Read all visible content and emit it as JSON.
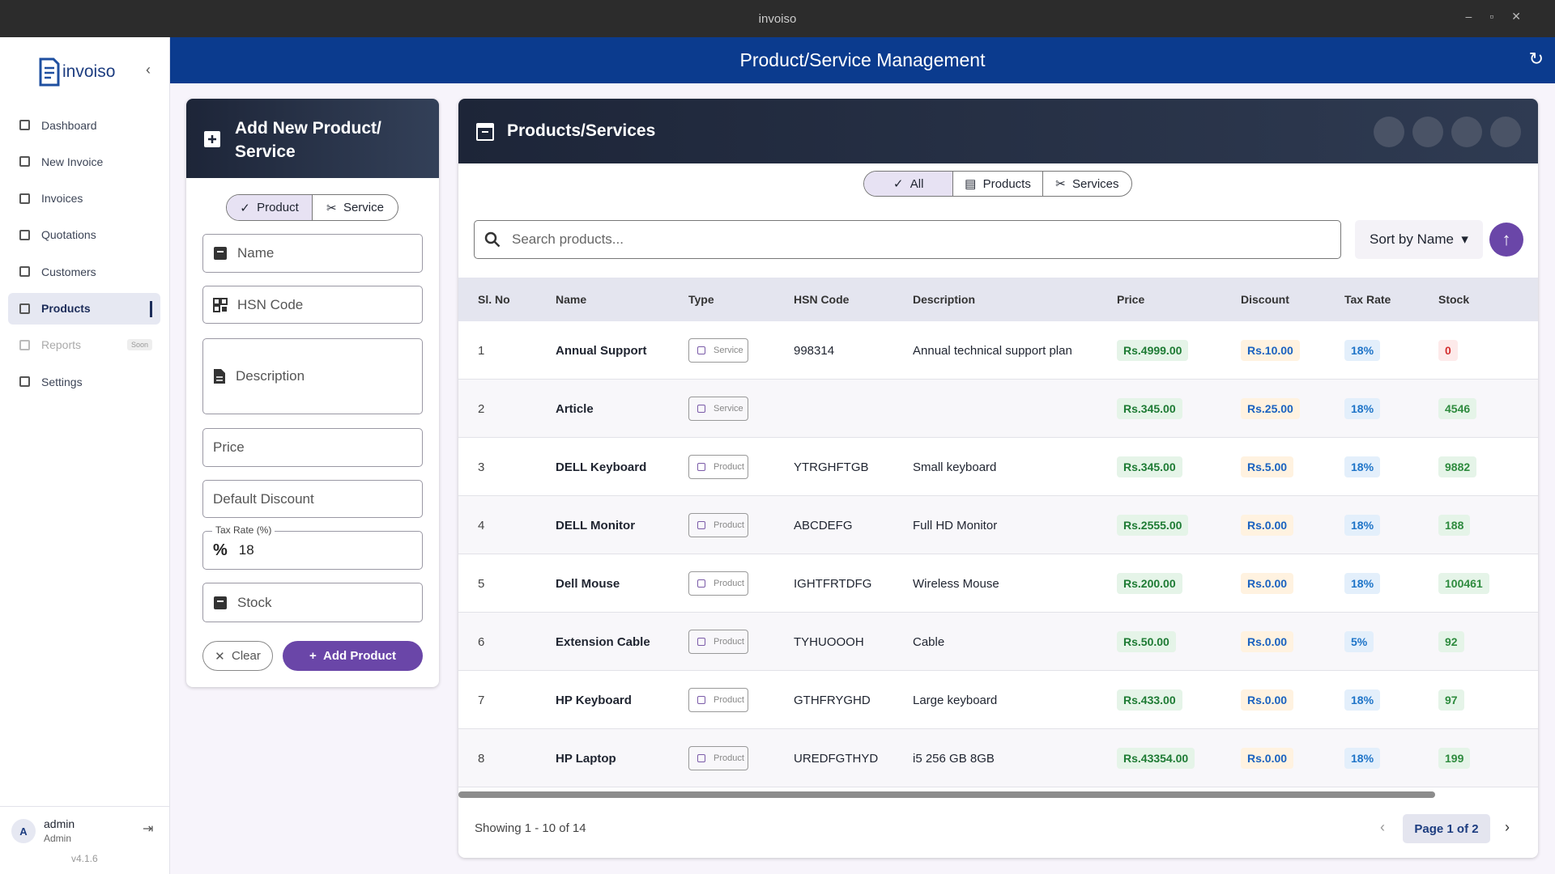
{
  "window": {
    "title": "invoiso"
  },
  "sidebar": {
    "logo": "invoiso",
    "nav": [
      {
        "label": "Dashboard"
      },
      {
        "label": "New Invoice"
      },
      {
        "label": "Invoices"
      },
      {
        "label": "Quotations"
      },
      {
        "label": "Customers"
      },
      {
        "label": "Products"
      },
      {
        "label": "Reports",
        "badge": "Soon"
      },
      {
        "label": "Settings"
      }
    ],
    "user": {
      "initial": "A",
      "name": "admin",
      "role": "Admin"
    },
    "version": "v4.1.6"
  },
  "header": {
    "title": "Product/Service Management"
  },
  "form": {
    "title": "Add New Product/ Service",
    "toggle": [
      "Product",
      "Service"
    ],
    "fields": {
      "name": "Name",
      "hsn": "HSN Code",
      "description": "Description",
      "price": "Price",
      "discount": "Default Discount",
      "tax_label": "Tax Rate (%)",
      "tax_value": "18",
      "stock": "Stock"
    },
    "buttons": [
      "Clear",
      "Add Product"
    ]
  },
  "list": {
    "title": "Products/Services",
    "filters": [
      "All",
      "Products",
      "Services"
    ],
    "search_placeholder": "Search products...",
    "sort": "Sort by Name",
    "table": {
      "columns": [
        "Sl. No",
        "Name",
        "Type",
        "HSN Code",
        "Description",
        "Price",
        "Discount",
        "Tax Rate",
        "Stock"
      ],
      "rows": [
        [
          "1",
          "Annual Support",
          "Service",
          "998314",
          "Annual technical support plan",
          "Rs.4999.00",
          "Rs.10.00",
          "18%",
          "0"
        ],
        [
          "2",
          "Article",
          "Service",
          null,
          null,
          "Rs.345.00",
          "Rs.25.00",
          "18%",
          "4546"
        ],
        [
          "3",
          "DELL Keyboard",
          "Product",
          "YTRGHFTGB",
          "Small keyboard",
          "Rs.345.00",
          "Rs.5.00",
          "18%",
          "9882"
        ],
        [
          "4",
          "DELL Monitor",
          "Product",
          "ABCDEFG",
          "Full HD Monitor",
          "Rs.2555.00",
          "Rs.0.00",
          "18%",
          "188"
        ],
        [
          "5",
          "Dell Mouse",
          "Product",
          "IGHTFRTDFG",
          "Wireless Mouse",
          "Rs.200.00",
          "Rs.0.00",
          "18%",
          "100461"
        ],
        [
          "6",
          "Extension Cable",
          "Product",
          "TYHUOOOH",
          "Cable",
          "Rs.50.00",
          "Rs.0.00",
          "5%",
          "92"
        ],
        [
          "7",
          "HP Keyboard",
          "Product",
          "GTHFRYGHD",
          "Large keyboard",
          "Rs.433.00",
          "Rs.0.00",
          "18%",
          "97"
        ],
        [
          "8",
          "HP Laptop",
          "Product",
          "UREDFGTHYD",
          "i5 256 GB 8GB",
          "Rs.43354.00",
          "Rs.0.00",
          "18%",
          "199"
        ]
      ]
    },
    "footer": {
      "showing": "Showing 1 - 10 of 14",
      "page": "Page 1 of 2"
    }
  }
}
